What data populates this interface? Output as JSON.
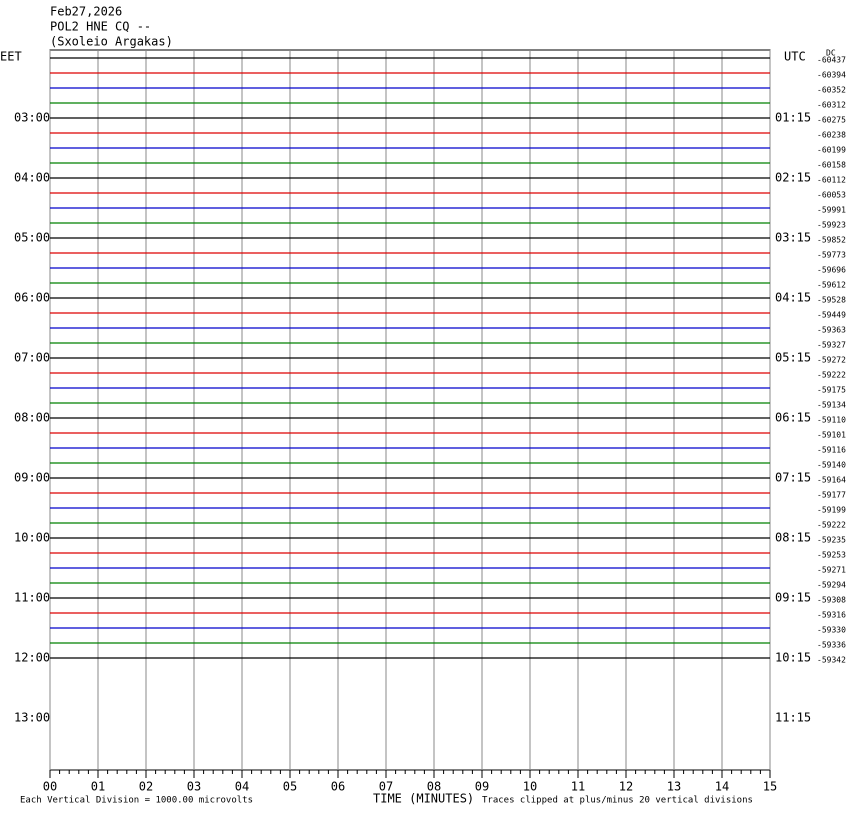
{
  "chart_data": {
    "type": "helicorder",
    "title_lines": [
      "Feb27,2026",
      "POL2 HNE CQ --",
      "(Sxoleio Argakas)"
    ],
    "left_axis_label": "EET",
    "right_axis_label": "UTC",
    "offset_header": "DC",
    "left_time_labels": [
      "03:00",
      "04:00",
      "05:00",
      "06:00",
      "07:00",
      "08:00",
      "09:00",
      "10:00",
      "11:00",
      "12:00",
      "13:00"
    ],
    "right_time_labels": [
      "01:15",
      "02:15",
      "03:15",
      "04:15",
      "05:15",
      "06:15",
      "07:15",
      "08:15",
      "09:15",
      "10:15",
      "11:15"
    ],
    "trace_colors": [
      "#000000",
      "#dd0000",
      "#0000cc",
      "#008000"
    ],
    "offsets": [
      -60437,
      -60394,
      -60352,
      -60312,
      -60275,
      -60238,
      -60199,
      -60158,
      -60112,
      -60053,
      -59991,
      -59923,
      -59852,
      -59773,
      -59696,
      -59612,
      -59528,
      -59449,
      -59363,
      -59327,
      -59272,
      -59222,
      -59175,
      -59134,
      -59110,
      -59101,
      -59116,
      -59140,
      -59164,
      -59177,
      -59199,
      -59222,
      -59235,
      -59253,
      -59271,
      -59294,
      -59308,
      -59316,
      -59330,
      -59336,
      -59342
    ],
    "xlabel": "TIME (MINUTES)",
    "xlim": [
      0,
      15
    ],
    "xticks": [
      {
        "value": 0,
        "label": "00"
      },
      {
        "value": 1,
        "label": "01"
      },
      {
        "value": 2,
        "label": "02"
      },
      {
        "value": 3,
        "label": "03"
      },
      {
        "value": 4,
        "label": "04"
      },
      {
        "value": 5,
        "label": "05"
      },
      {
        "value": 6,
        "label": "06"
      },
      {
        "value": 7,
        "label": "07"
      },
      {
        "value": 8,
        "label": "08"
      },
      {
        "value": 9,
        "label": "09"
      },
      10,
      11,
      12,
      13,
      14,
      15
    ],
    "grid": true,
    "scale_note": "Each Vertical Division = 1000.00 microvolts",
    "clip_note": "Traces clipped at plus/minus 20 vertical divisions"
  }
}
